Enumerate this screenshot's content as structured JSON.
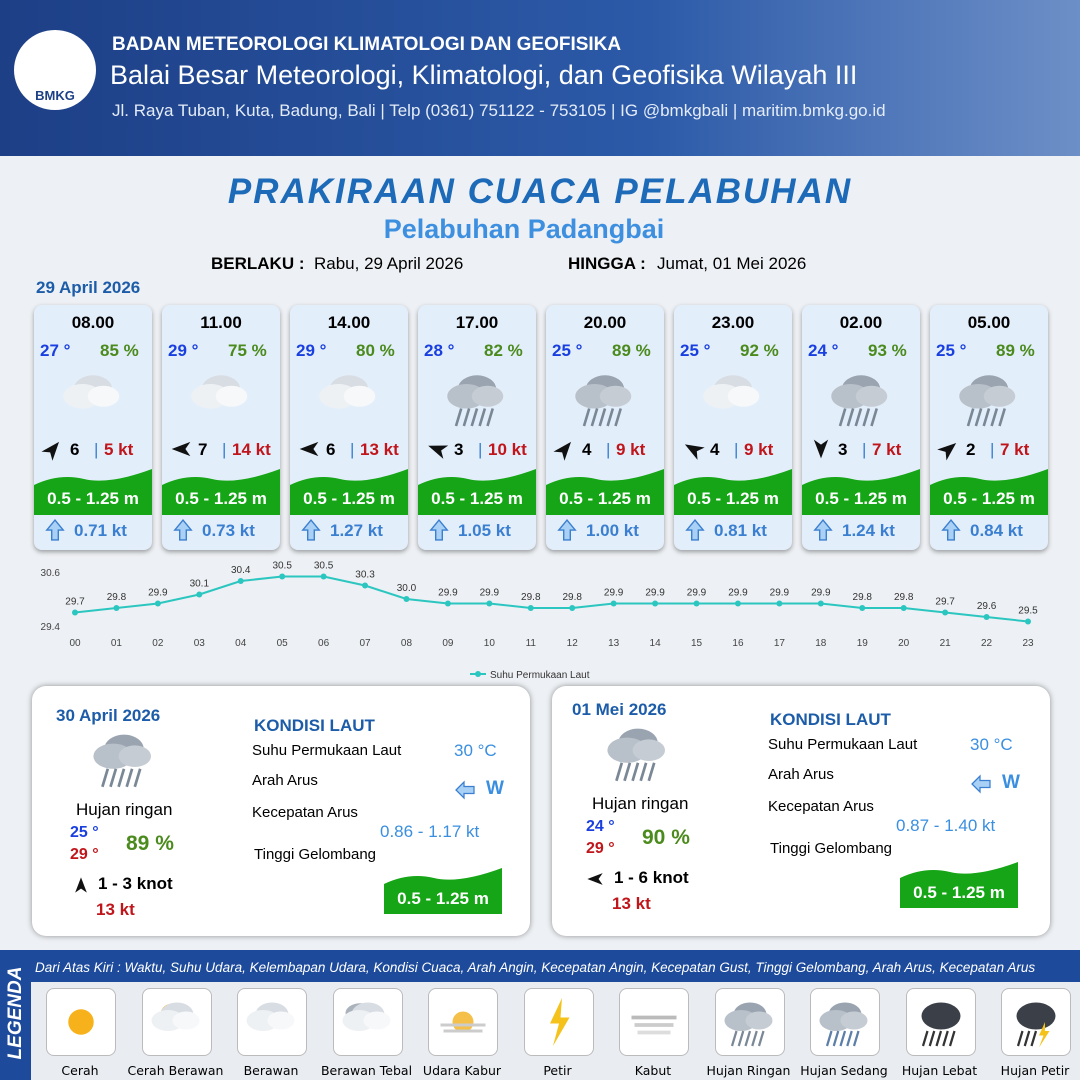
{
  "header": {
    "logo": "BMKG",
    "org": "BADAN METEOROLOGI KLIMATOLOGI DAN GEOFISIKA",
    "office": "Balai Besar Meteorologi, Klimatologi, dan Geofisika Wilayah III",
    "contact": "Jl. Raya Tuban, Kuta, Badung, Bali | Telp (0361) 751122 - 753105 | IG @bmkgbali | maritim.bmkg.go.id"
  },
  "title": "PRAKIRAAN CUACA PELABUHAN",
  "subtitle": "Pelabuhan Padangbai",
  "validity": {
    "from_label": "BERLAKU :",
    "from": "Rabu, 29 April 2026",
    "to_label": "HINGGA :",
    "to": "Jumat, 01 Mei 2026"
  },
  "day1": {
    "date": "29 April 2026",
    "forecasts": [
      {
        "time": "08.00",
        "temp": "27 °",
        "humidity": "85 %",
        "wind": "6",
        "gust": "5 kt",
        "wave": "0.5 - 1.25 m",
        "current": "0.71 kt"
      },
      {
        "time": "11.00",
        "temp": "29 °",
        "humidity": "75 %",
        "wind": "7",
        "gust": "14 kt",
        "wave": "0.5 - 1.25 m",
        "current": "0.73 kt"
      },
      {
        "time": "14.00",
        "temp": "29 °",
        "humidity": "80 %",
        "wind": "6",
        "gust": "13 kt",
        "wave": "0.5 - 1.25 m",
        "current": "1.27 kt"
      },
      {
        "time": "17.00",
        "temp": "28 °",
        "humidity": "82 %",
        "wind": "3",
        "gust": "10 kt",
        "wave": "0.5 - 1.25 m",
        "current": "1.05 kt"
      },
      {
        "time": "20.00",
        "temp": "25 °",
        "humidity": "89 %",
        "wind": "4",
        "gust": "9 kt",
        "wave": "0.5 - 1.25 m",
        "current": "1.00 kt"
      },
      {
        "time": "23.00",
        "temp": "25 °",
        "humidity": "92 %",
        "wind": "4",
        "gust": "9 kt",
        "wave": "0.5 - 1.25 m",
        "current": "0.81 kt"
      },
      {
        "time": "02.00",
        "temp": "24 °",
        "humidity": "93 %",
        "wind": "3",
        "gust": "7 kt",
        "wave": "0.5 - 1.25 m",
        "current": "1.24 kt"
      },
      {
        "time": "05.00",
        "temp": "25 °",
        "humidity": "89 %",
        "wind": "2",
        "gust": "7 kt",
        "wave": "0.5 - 1.25 m",
        "current": "0.84 kt"
      }
    ]
  },
  "chart_data": {
    "type": "line",
    "x": [
      "00",
      "01",
      "02",
      "03",
      "04",
      "05",
      "06",
      "07",
      "08",
      "09",
      "10",
      "11",
      "12",
      "13",
      "14",
      "15",
      "16",
      "17",
      "18",
      "19",
      "20",
      "21",
      "22",
      "23"
    ],
    "series": [
      {
        "name": "Suhu Permukaan Laut",
        "color": "#2cc6c0",
        "values": [
          29.7,
          29.8,
          29.9,
          30.1,
          30.4,
          30.5,
          30.5,
          30.3,
          30.0,
          29.9,
          29.9,
          29.8,
          29.8,
          29.9,
          29.9,
          29.9,
          29.9,
          29.9,
          29.9,
          29.8,
          29.8,
          29.7,
          29.6,
          29.5
        ],
        "value_labels": [
          "29.7",
          "29.8",
          "29.9",
          "30.1",
          "30.4",
          "30.5",
          "30.5",
          "30.3",
          "30.0",
          "29.9",
          "29.9",
          "29.8",
          "29.8",
          "29.9",
          "29.9",
          "29.9",
          "29.9",
          "29.9",
          "29.9",
          "29.8",
          "29.8",
          "29.7",
          "29.6",
          "29.5"
        ]
      }
    ],
    "ylim": [
      29.4,
      30.6
    ],
    "yticks": [
      29.4,
      30.6
    ]
  },
  "days": [
    {
      "date": "30 April 2026",
      "weather": "Hujan ringan",
      "tmin": "25 °",
      "tmax": "29 °",
      "humidity": "89 %",
      "wind": "1 - 3 knot",
      "gust": "13 kt",
      "sea_heading": "KONDISI LAUT",
      "sst_label": "Suhu Permukaan Laut",
      "sst": "30 °C",
      "current_dir_label": "Arah Arus",
      "current_dir": "W",
      "current_speed_label": "Kecepatan Arus",
      "current_speed": "0.86 - 1.17 kt",
      "wave_label": "Tinggi Gelombang",
      "wave": "0.5 - 1.25 m"
    },
    {
      "date": "01 Mei 2026",
      "weather": "Hujan ringan",
      "tmin": "24 °",
      "tmax": "29 °",
      "humidity": "90 %",
      "wind": "1 - 6 knot",
      "gust": "13 kt",
      "sea_heading": "KONDISI LAUT",
      "sst_label": "Suhu Permukaan Laut",
      "sst": "30 °C",
      "current_dir_label": "Arah Arus",
      "current_dir": "W",
      "current_speed_label": "Kecepatan Arus",
      "current_speed": "0.87 - 1.40 kt",
      "wave_label": "Tinggi Gelombang",
      "wave": "0.5 - 1.25 m"
    }
  ],
  "legend": {
    "title": "LEGENDA",
    "note": "Dari Atas Kiri : Waktu, Suhu Udara, Kelembapan Udara, Kondisi Cuaca, Arah Angin, Kecepatan Angin, Kecepatan Gust, Tinggi Gelombang, Arah Arus, Kecepatan Arus",
    "items": [
      "Cerah",
      "Cerah Berawan",
      "Berawan",
      "Berawan Tebal",
      "Udara Kabur",
      "Petir",
      "Kabut",
      "Hujan Ringan",
      "Hujan Sedang",
      "Hujan Lebat",
      "Hujan Petir"
    ]
  }
}
